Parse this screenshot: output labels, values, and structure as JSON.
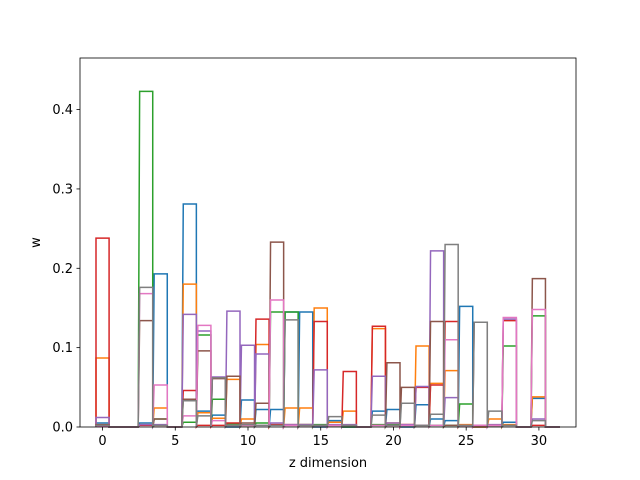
{
  "chart_data": {
    "type": "step",
    "title": "",
    "xlabel": "z dimension",
    "ylabel": "w",
    "xlim": [
      -1.55,
      32.55
    ],
    "ylim": [
      0,
      0.465
    ],
    "xticks": [
      0,
      5,
      10,
      15,
      20,
      25,
      30
    ],
    "yticks": [
      0.0,
      0.1,
      0.2,
      0.3,
      0.4
    ],
    "ytick_labels": [
      "0.0",
      "0.1",
      "0.2",
      "0.3",
      "0.4"
    ],
    "grid": false,
    "legend": "none",
    "bar_width": 0.9,
    "x": [
      0,
      1,
      2,
      3,
      4,
      5,
      6,
      7,
      8,
      9,
      10,
      11,
      12,
      13,
      14,
      15,
      16,
      17,
      18,
      19,
      20,
      21,
      22,
      23,
      24,
      25,
      26,
      27,
      28,
      29,
      30,
      31
    ],
    "series": [
      {
        "color": "#1f77b4",
        "values": [
          0.005,
          0,
          0,
          0.005,
          0.193,
          0,
          0.281,
          0.02,
          0.015,
          0,
          0.034,
          0.022,
          0.022,
          0.145,
          0.145,
          0,
          0.008,
          0,
          0,
          0.02,
          0.022,
          0,
          0.028,
          0.01,
          0.008,
          0.152,
          0,
          0.002,
          0.006,
          0,
          0.036,
          0
        ]
      },
      {
        "color": "#ff7f0e",
        "values": [
          0.087,
          0,
          0,
          0.003,
          0.024,
          0,
          0.18,
          0.018,
          0.011,
          0.06,
          0.01,
          0.104,
          0.003,
          0.024,
          0.024,
          0.15,
          0.006,
          0.02,
          0,
          0.124,
          0.005,
          0.003,
          0.102,
          0.055,
          0.071,
          0.003,
          0,
          0.01,
          0.003,
          0,
          0.038,
          0
        ]
      },
      {
        "color": "#2ca02c",
        "values": [
          0.002,
          0,
          0,
          0.423,
          0.01,
          0,
          0.006,
          0.116,
          0.035,
          0.004,
          0.002,
          0.005,
          0.145,
          0.145,
          0.003,
          0.003,
          0.002,
          0,
          0,
          0.003,
          0.003,
          0.002,
          0.002,
          0.002,
          0.002,
          0.029,
          0.002,
          0.002,
          0.102,
          0,
          0.14,
          0
        ]
      },
      {
        "color": "#d62728",
        "values": [
          0.238,
          0,
          0,
          0.002,
          0.002,
          0,
          0.046,
          0.002,
          0.002,
          0.005,
          0.002,
          0.136,
          0.003,
          0.003,
          0.003,
          0.133,
          0.002,
          0.07,
          0,
          0.127,
          0.002,
          0.003,
          0.05,
          0.053,
          0.133,
          0.002,
          0.002,
          0.002,
          0.134,
          0,
          0.002,
          0
        ]
      },
      {
        "color": "#9467bd",
        "values": [
          0.012,
          0,
          0,
          0.003,
          0.003,
          0,
          0.142,
          0.121,
          0.063,
          0.146,
          0.103,
          0.092,
          0.005,
          0.003,
          0.003,
          0.072,
          0.003,
          0.003,
          0,
          0.064,
          0.005,
          0.003,
          0.051,
          0.222,
          0.037,
          0.002,
          0.002,
          0.003,
          0.136,
          0,
          0.01,
          0
        ]
      },
      {
        "color": "#8c564b",
        "values": [
          0.003,
          0,
          0,
          0.134,
          0.01,
          0,
          0.035,
          0.096,
          0.061,
          0.064,
          0.005,
          0.03,
          0.233,
          0.002,
          0.002,
          0.002,
          0.002,
          0.002,
          0,
          0.002,
          0.081,
          0.05,
          0.002,
          0.133,
          0.002,
          0.002,
          0.132,
          0.002,
          0.002,
          0,
          0.187,
          0
        ]
      },
      {
        "color": "#e377c2",
        "values": [
          0.001,
          0,
          0,
          0.168,
          0.053,
          0,
          0.014,
          0.128,
          0.008,
          0.002,
          0.002,
          0.002,
          0.16,
          0.002,
          0.002,
          0.002,
          0.002,
          0.002,
          0,
          0.002,
          0.002,
          0.002,
          0.002,
          0.002,
          0.11,
          0.002,
          0.002,
          0.002,
          0.138,
          0,
          0.148,
          0
        ]
      },
      {
        "color": "#7f7f7f",
        "values": [
          0.002,
          0,
          0,
          0.176,
          0.002,
          0,
          0.033,
          0.014,
          0.062,
          0.002,
          0.003,
          0.002,
          0.002,
          0.135,
          0.002,
          0.002,
          0.013,
          0.002,
          0,
          0.015,
          0.002,
          0.03,
          0.002,
          0.016,
          0.23,
          0.002,
          0.132,
          0.02,
          0.002,
          0,
          0.008,
          0
        ]
      }
    ]
  }
}
